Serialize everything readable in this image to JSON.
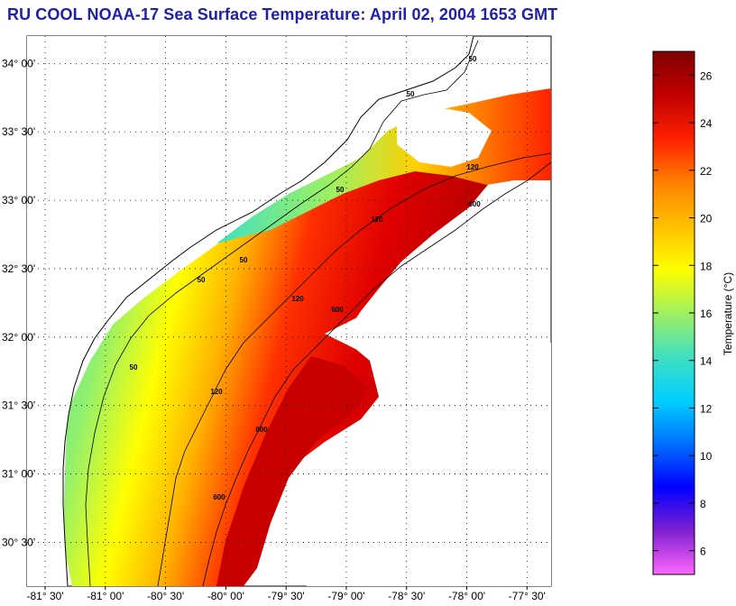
{
  "title": "RU COOL  NOAA-17  Sea Surface Temperature:  April 02, 2004 1653 GMT",
  "map": {
    "lat_labels": [
      "34° 00'",
      "33° 30'",
      "33° 00'",
      "32° 30'",
      "32° 00'",
      "31° 30'",
      "31° 00'",
      "30° 30'"
    ],
    "lat_values": [
      34.0,
      33.5,
      33.0,
      32.5,
      32.0,
      31.5,
      31.0,
      30.5
    ],
    "lon_labels": [
      "-81° 30'",
      "-81° 00'",
      "-80° 30'",
      "-80° 00'",
      "-79° 30'",
      "-79° 00'",
      "-78° 30'",
      "-78° 00'",
      "-77° 30'"
    ],
    "lon_values": [
      -81.5,
      -81.0,
      -80.5,
      -80.0,
      -79.5,
      -79.0,
      -78.5,
      -78.0,
      -77.5
    ],
    "lon_range": [
      -81.65,
      -77.3
    ],
    "lat_range": [
      30.18,
      34.2
    ],
    "contour_labels": [
      "50",
      "50",
      "50",
      "50",
      "50",
      "50",
      "120",
      "120",
      "120",
      "120",
      "600",
      "600",
      "600",
      "600"
    ]
  },
  "colorbar": {
    "label": "Temperature (°C)",
    "ticks": [
      "26",
      "24",
      "22",
      "20",
      "18",
      "16",
      "14",
      "12",
      "10",
      "8",
      "6"
    ],
    "tick_values": [
      26,
      24,
      22,
      20,
      18,
      16,
      14,
      12,
      10,
      8,
      6
    ],
    "range": [
      5,
      27
    ],
    "colors": [
      "#ff66ff",
      "#8020d0",
      "#0000ff",
      "#0070ff",
      "#00d0ff",
      "#40e0c0",
      "#a0f060",
      "#ffff00",
      "#ffc000",
      "#ff8000",
      "#ff2000",
      "#c00000",
      "#800000"
    ]
  },
  "chart_data": {
    "type": "heatmap",
    "title": "RU COOL  NOAA-17  Sea Surface Temperature:  April 02, 2004 1653 GMT",
    "xlabel": "",
    "ylabel": "",
    "colorbar_label": "Temperature (°C)",
    "xlim": [
      -81.65,
      -77.3
    ],
    "ylim": [
      30.18,
      34.2
    ],
    "value_range": [
      5,
      27
    ],
    "x_ticks": [
      -81.5,
      -81.0,
      -80.5,
      -80.0,
      -79.5,
      -79.0,
      -78.5,
      -78.0,
      -77.5
    ],
    "y_ticks": [
      30.5,
      31.0,
      31.5,
      32.0,
      32.5,
      33.0,
      33.5,
      34.0
    ],
    "colorbar_ticks": [
      6,
      8,
      10,
      12,
      14,
      16,
      18,
      20,
      22,
      24,
      26
    ],
    "grid": true
  }
}
